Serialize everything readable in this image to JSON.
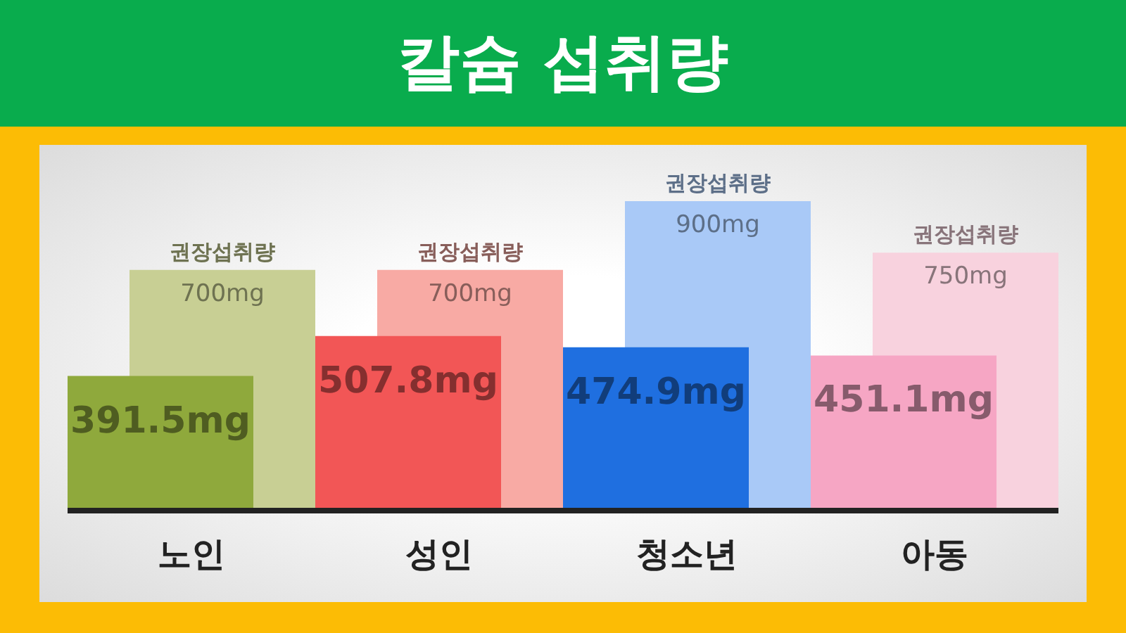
{
  "chart_data": {
    "type": "bar",
    "title": "칼슘 섭취량",
    "categories": [
      "노인",
      "성인",
      "청소년",
      "아동"
    ],
    "series": [
      {
        "name": "권장섭취량",
        "colors": [
          "#c8cf94",
          "#f8aaa4",
          "#a9c9f7",
          "#f8d2de"
        ],
        "values": [
          700,
          700,
          900,
          750
        ],
        "value_labels": [
          "700mg",
          "700mg",
          "900mg",
          "750mg"
        ]
      },
      {
        "colors": [
          "#8fa93c",
          "#f25656",
          "#1f6fe0",
          "#f6a6c4"
        ],
        "values": [
          391.5,
          507.8,
          474.9,
          451.1
        ],
        "value_labels": [
          "391.5mg",
          "507.8mg",
          "474.9mg",
          "451.1mg"
        ]
      }
    ],
    "grid": false,
    "legend": false
  }
}
